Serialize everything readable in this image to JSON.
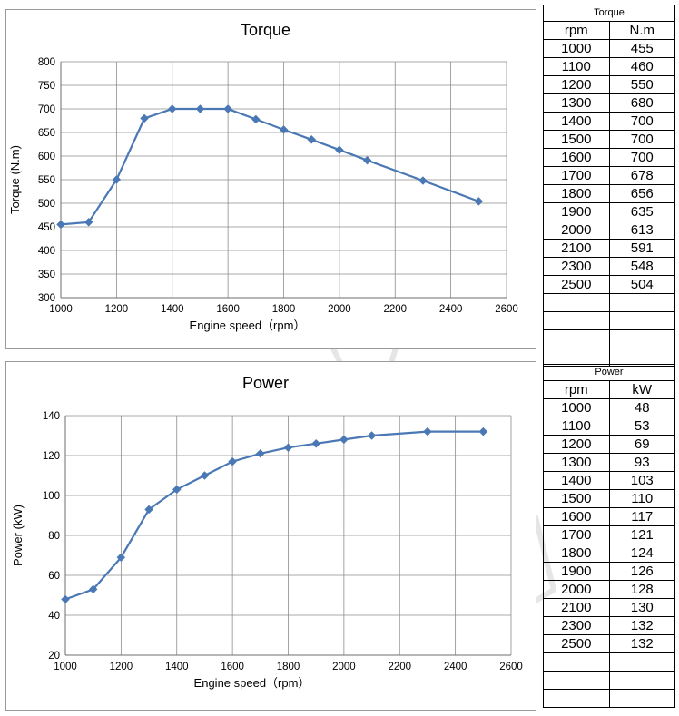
{
  "torque_table": {
    "caption": "Torque",
    "headers": [
      "rpm",
      "N.m"
    ],
    "rows": [
      [
        "1000",
        "455"
      ],
      [
        "1100",
        "460"
      ],
      [
        "1200",
        "550"
      ],
      [
        "1300",
        "680"
      ],
      [
        "1400",
        "700"
      ],
      [
        "1500",
        "700"
      ],
      [
        "1600",
        "700"
      ],
      [
        "1700",
        "678"
      ],
      [
        "1800",
        "656"
      ],
      [
        "1900",
        "635"
      ],
      [
        "2000",
        "613"
      ],
      [
        "2100",
        "591"
      ],
      [
        "2300",
        "548"
      ],
      [
        "2500",
        "504"
      ],
      [
        "",
        ""
      ],
      [
        "",
        ""
      ],
      [
        "",
        ""
      ],
      [
        "",
        ""
      ]
    ]
  },
  "power_table": {
    "caption": "Power",
    "headers": [
      "rpm",
      "kW"
    ],
    "rows": [
      [
        "1000",
        "48"
      ],
      [
        "1100",
        "53"
      ],
      [
        "1200",
        "69"
      ],
      [
        "1300",
        "93"
      ],
      [
        "1400",
        "103"
      ],
      [
        "1500",
        "110"
      ],
      [
        "1600",
        "117"
      ],
      [
        "1700",
        "121"
      ],
      [
        "1800",
        "124"
      ],
      [
        "1900",
        "126"
      ],
      [
        "2000",
        "128"
      ],
      [
        "2100",
        "130"
      ],
      [
        "2300",
        "132"
      ],
      [
        "2500",
        "132"
      ],
      [
        "",
        ""
      ],
      [
        "",
        ""
      ],
      [
        "",
        ""
      ]
    ]
  },
  "chart_data": [
    {
      "type": "line",
      "title": "Torque",
      "xlabel": "Engine speed（rpm）",
      "ylabel": "Torque (N.m)",
      "xlim": [
        1000,
        2600
      ],
      "ylim": [
        300,
        800
      ],
      "xticks": [
        1000,
        1200,
        1400,
        1600,
        1800,
        2000,
        2200,
        2400,
        2600
      ],
      "yticks": [
        300,
        350,
        400,
        450,
        500,
        550,
        600,
        650,
        700,
        750,
        800
      ],
      "grid": true,
      "color": "#4a78b5",
      "marker": "diamond",
      "x": [
        1000,
        1100,
        1200,
        1300,
        1400,
        1500,
        1600,
        1700,
        1800,
        1900,
        2000,
        2100,
        2300,
        2500
      ],
      "y": [
        455,
        460,
        550,
        680,
        700,
        700,
        700,
        678,
        656,
        635,
        613,
        591,
        548,
        504
      ]
    },
    {
      "type": "line",
      "title": "Power",
      "xlabel": "Engine speed（rpm）",
      "ylabel": "Power (kW)",
      "xlim": [
        1000,
        2600
      ],
      "ylim": [
        20,
        140
      ],
      "xticks": [
        1000,
        1200,
        1400,
        1600,
        1800,
        2000,
        2200,
        2400,
        2600
      ],
      "yticks": [
        20,
        40,
        60,
        80,
        100,
        120,
        140
      ],
      "grid": true,
      "color": "#4a78b5",
      "marker": "diamond",
      "x": [
        1000,
        1100,
        1200,
        1300,
        1400,
        1500,
        1600,
        1700,
        1800,
        1900,
        2000,
        2100,
        2300,
        2500
      ],
      "y": [
        48,
        53,
        69,
        93,
        103,
        110,
        117,
        121,
        124,
        126,
        128,
        130,
        132,
        132
      ]
    }
  ]
}
